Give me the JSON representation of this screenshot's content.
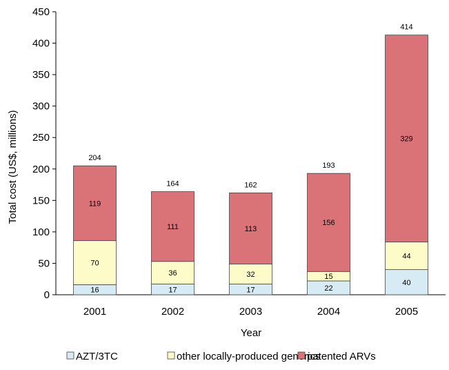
{
  "chart_data": {
    "type": "bar",
    "stacked": true,
    "categories": [
      "2001",
      "2002",
      "2003",
      "2004",
      "2005"
    ],
    "series": [
      {
        "name": "AZT/3TC",
        "values": [
          16,
          17,
          17,
          22,
          40
        ],
        "color": "#d7ebf5"
      },
      {
        "name": "other locally-produced generics",
        "values": [
          70,
          36,
          32,
          15,
          44
        ],
        "color": "#fdfbc8"
      },
      {
        "name": "patented ARVs",
        "values": [
          119,
          111,
          113,
          156,
          329
        ],
        "color": "#d97378"
      }
    ],
    "totals": [
      204,
      164,
      162,
      193,
      414
    ],
    "xlabel": "Year",
    "ylabel": "Total cost (US$, millions)",
    "ylim": [
      0,
      450
    ],
    "yticks": [
      0,
      50,
      100,
      150,
      200,
      250,
      300,
      350,
      400,
      450
    ],
    "grid": false,
    "legend_position": "bottom"
  }
}
